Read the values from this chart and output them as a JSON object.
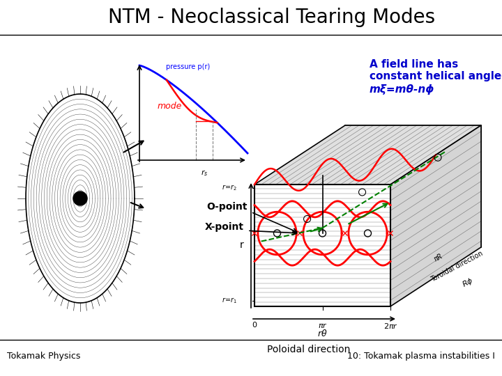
{
  "title": "NTM - Neoclassical Tearing Modes",
  "title_fontsize": 20,
  "background_color": "#ffffff",
  "annotation_line1": "A field line has",
  "annotation_line2": "constant helical angle,",
  "annotation_formula": "mξ=mθ-nϕ",
  "footer_left": "Tokamak Physics",
  "footer_right": "10: Tokamak plasma instabilities I",
  "footer_fontsize": 9
}
